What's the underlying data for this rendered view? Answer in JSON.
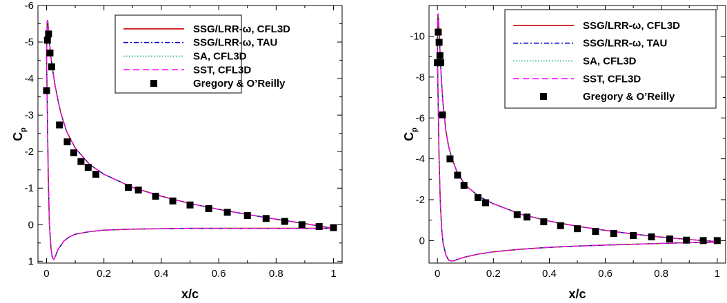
{
  "chart_data": [
    {
      "type": "line",
      "xlabel": "x/c",
      "ylabel": "C",
      "ylabel_subscript": "p",
      "xlim": [
        -0.03,
        1.03
      ],
      "ylim": [
        1.05,
        -6.0
      ],
      "y_reversed": true,
      "grid": false,
      "legend_position": "top-right",
      "x_ticks": [
        0,
        0.2,
        0.4,
        0.6,
        0.8,
        1
      ],
      "x_tick_labels": [
        "0",
        "0.2",
        "0.4",
        "0.6",
        "0.8",
        "1"
      ],
      "y_ticks": [
        1,
        0,
        -1,
        -2,
        -3,
        -4,
        -5,
        -6
      ],
      "y_tick_labels": [
        "1",
        "0",
        "-1",
        "-2",
        "-3",
        "-4",
        "-5",
        "-6"
      ],
      "upper_surface": {
        "x": [
          0,
          0.002,
          0.004,
          0.006,
          0.01,
          0.015,
          0.02,
          0.03,
          0.04,
          0.05,
          0.07,
          0.1,
          0.15,
          0.2,
          0.3,
          0.4,
          0.5,
          0.6,
          0.7,
          0.8,
          0.9,
          1.0
        ],
        "cp": [
          -4.6,
          -5.55,
          -5.6,
          -5.4,
          -5.0,
          -4.6,
          -4.3,
          -3.8,
          -3.4,
          -3.05,
          -2.55,
          -2.1,
          -1.65,
          -1.38,
          -1.02,
          -0.78,
          -0.58,
          -0.42,
          -0.28,
          -0.15,
          -0.03,
          0.1
        ]
      },
      "lower_surface": {
        "x": [
          0,
          0.003,
          0.006,
          0.01,
          0.015,
          0.02,
          0.025,
          0.03,
          0.04,
          0.06,
          0.08,
          0.1,
          0.15,
          0.2,
          0.3,
          0.4,
          0.5,
          0.6,
          0.7,
          0.8,
          0.9,
          1.0
        ],
        "cp": [
          -4.6,
          -3.0,
          -1.3,
          0.0,
          0.6,
          0.9,
          0.95,
          0.88,
          0.68,
          0.45,
          0.33,
          0.26,
          0.19,
          0.15,
          0.12,
          0.11,
          0.1,
          0.1,
          0.1,
          0.1,
          0.1,
          0.1
        ]
      },
      "experiment": {
        "name": "Gregory & O’Reilly",
        "x": [
          0.0,
          0.003,
          0.007,
          0.012,
          0.018,
          0.045,
          0.072,
          0.095,
          0.12,
          0.145,
          0.172,
          0.285,
          0.32,
          0.38,
          0.44,
          0.5,
          0.565,
          0.63,
          0.7,
          0.765,
          0.83,
          0.89,
          0.95,
          1.0
        ],
        "cp": [
          -3.67,
          -5.05,
          -5.22,
          -4.7,
          -4.32,
          -2.73,
          -2.27,
          -1.97,
          -1.73,
          -1.57,
          -1.38,
          -1.02,
          -0.95,
          -0.78,
          -0.65,
          -0.54,
          -0.44,
          -0.34,
          -0.25,
          -0.17,
          -0.09,
          0.0,
          0.05,
          0.08
        ]
      },
      "series": [
        {
          "name": "SSG/LRR-ω, CFL3D",
          "color": "#cc0000",
          "dash": "solid"
        },
        {
          "name": "SSG/LRR-ω, TAU",
          "color": "#0000cc",
          "dash": "dashdot"
        },
        {
          "name": "SA, CFL3D",
          "color": "#00a050",
          "dash": "dotted"
        },
        {
          "name": "SST, CFL3D",
          "color": "#ff00ff",
          "dash": "dashed"
        }
      ]
    },
    {
      "type": "line",
      "xlabel": "x/c",
      "ylabel": "C",
      "ylabel_subscript": "p",
      "xlim": [
        -0.03,
        1.03
      ],
      "ylim": [
        1.1,
        -11.5
      ],
      "y_reversed": true,
      "grid": false,
      "legend_position": "top-right",
      "x_ticks": [
        0,
        0.2,
        0.4,
        0.6,
        0.8,
        1
      ],
      "x_tick_labels": [
        "0",
        "0.2",
        "0.4",
        "0.6",
        "0.8",
        "1"
      ],
      "y_ticks": [
        0,
        -2,
        -4,
        -6,
        -8,
        -10
      ],
      "y_tick_labels": [
        "0",
        "-2",
        "-4",
        "-6",
        "-8",
        "-10"
      ],
      "upper_surface": {
        "x": [
          0,
          0.001,
          0.002,
          0.004,
          0.007,
          0.01,
          0.015,
          0.02,
          0.03,
          0.04,
          0.05,
          0.07,
          0.1,
          0.15,
          0.2,
          0.3,
          0.4,
          0.5,
          0.6,
          0.7,
          0.8,
          0.9,
          1.0
        ],
        "cp": [
          -9.0,
          -10.9,
          -11.1,
          -10.8,
          -10.0,
          -9.0,
          -7.7,
          -6.7,
          -5.4,
          -4.6,
          -4.1,
          -3.35,
          -2.7,
          -2.15,
          -1.8,
          -1.28,
          -0.95,
          -0.7,
          -0.5,
          -0.32,
          -0.17,
          -0.05,
          0.05
        ]
      },
      "lower_surface": {
        "x": [
          0,
          0.003,
          0.006,
          0.01,
          0.015,
          0.02,
          0.03,
          0.04,
          0.05,
          0.06,
          0.08,
          0.1,
          0.15,
          0.2,
          0.3,
          0.4,
          0.5,
          0.6,
          0.7,
          0.8,
          0.9,
          1.0
        ],
        "cp": [
          -9.0,
          -6.5,
          -4.0,
          -2.0,
          -0.6,
          0.1,
          0.7,
          0.95,
          1.0,
          0.98,
          0.88,
          0.8,
          0.65,
          0.55,
          0.42,
          0.33,
          0.27,
          0.22,
          0.18,
          0.14,
          0.1,
          0.08
        ]
      },
      "experiment": {
        "name": "Gregory & O’Reilly",
        "x": [
          0.0,
          0.003,
          0.006,
          0.009,
          0.012,
          0.018,
          0.045,
          0.072,
          0.095,
          0.145,
          0.172,
          0.285,
          0.32,
          0.38,
          0.44,
          0.5,
          0.565,
          0.63,
          0.7,
          0.765,
          0.83,
          0.89,
          0.95,
          1.0
        ],
        "cp": [
          -8.7,
          -10.2,
          -9.7,
          -9.05,
          -8.7,
          -6.15,
          -4.0,
          -3.2,
          -2.7,
          -2.1,
          -1.85,
          -1.27,
          -1.15,
          -0.92,
          -0.73,
          -0.58,
          -0.45,
          -0.35,
          -0.25,
          -0.18,
          -0.08,
          -0.02,
          0.0,
          0.0
        ]
      },
      "series": [
        {
          "name": "SSG/LRR-ω, CFL3D",
          "color": "#cc0000",
          "dash": "solid"
        },
        {
          "name": "SSG/LRR-ω, TAU",
          "color": "#0000cc",
          "dash": "dashdot"
        },
        {
          "name": "SA, CFL3D",
          "color": "#00a050",
          "dash": "dotted"
        },
        {
          "name": "SST, CFL3D",
          "color": "#ff00ff",
          "dash": "dashed"
        }
      ]
    }
  ]
}
